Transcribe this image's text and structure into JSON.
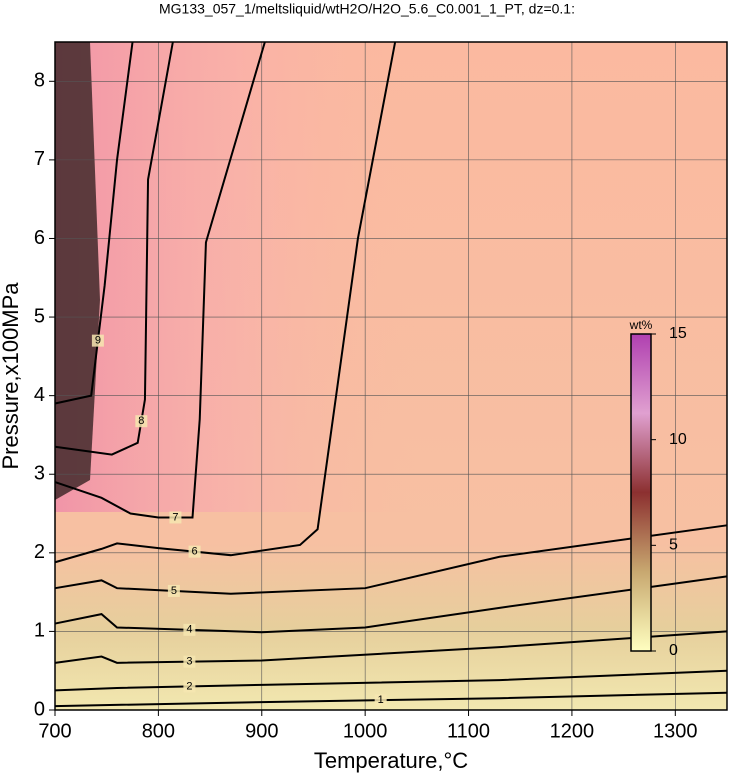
{
  "chart_data": {
    "type": "contour",
    "title": "MG133_057_1/meltsliquid/wtH2O/H2O_5.6_C0.001_1_PT, dz=0.1:",
    "x_label": "Temperature,°C",
    "y_label": "Pressure,x100MPa",
    "xlim": [
      700,
      1350
    ],
    "xticks": [
      700,
      800,
      900,
      1000,
      1100,
      1200,
      1300
    ],
    "ylim": [
      0,
      8.5
    ],
    "yticks": [
      0,
      1,
      2,
      3,
      4,
      5,
      6,
      7,
      8
    ],
    "grid": true,
    "contour_color": "#000000",
    "contours": [
      {
        "level": 1,
        "x": [
          700,
          900,
          1130,
          1350
        ],
        "y": [
          0.05,
          0.1,
          0.15,
          0.22
        ]
      },
      {
        "level": 2,
        "x": [
          700,
          760,
          900,
          1130,
          1350
        ],
        "y": [
          0.25,
          0.28,
          0.32,
          0.38,
          0.5
        ]
      },
      {
        "level": 3,
        "x": [
          700,
          745,
          760,
          900,
          1130,
          1350
        ],
        "y": [
          0.6,
          0.68,
          0.6,
          0.63,
          0.8,
          1.0
        ]
      },
      {
        "level": 4,
        "x": [
          700,
          745,
          760,
          900,
          1000,
          1130,
          1350
        ],
        "y": [
          1.1,
          1.22,
          1.05,
          0.99,
          1.05,
          1.3,
          1.7
        ]
      },
      {
        "level": 5,
        "x": [
          700,
          745,
          760,
          870,
          1000,
          1130,
          1350
        ],
        "y": [
          1.55,
          1.65,
          1.55,
          1.48,
          1.55,
          1.95,
          2.35
        ]
      },
      {
        "level": 6,
        "x": [
          700,
          745,
          760,
          800,
          870,
          937,
          954,
          993,
          1029
        ],
        "y": [
          1.88,
          2.05,
          2.12,
          2.06,
          1.97,
          2.1,
          2.3,
          6,
          8.5
        ]
      },
      {
        "level": 7,
        "x": [
          700,
          745,
          773,
          800,
          833,
          840,
          846,
          903
        ],
        "y": [
          2.9,
          2.7,
          2.5,
          2.45,
          2.45,
          3.7,
          5.95,
          8.5
        ]
      },
      {
        "level": 8,
        "x": [
          700,
          755,
          780,
          787,
          790,
          814
        ],
        "y": [
          3.35,
          3.25,
          3.4,
          3.95,
          6.75,
          8.5
        ]
      },
      {
        "level": 9,
        "x": [
          700,
          735,
          748,
          760,
          775
        ],
        "y": [
          3.9,
          4.0,
          5.4,
          7.0,
          8.5
        ]
      }
    ],
    "colorbar": {
      "label": "wt%",
      "lim": [
        0,
        15
      ],
      "ticks": [
        0,
        5,
        10,
        15
      ],
      "colors": [
        "#ffffc0",
        "#c8a870",
        "#8c3030",
        "#e0a0d0",
        "#b040b0"
      ]
    }
  }
}
